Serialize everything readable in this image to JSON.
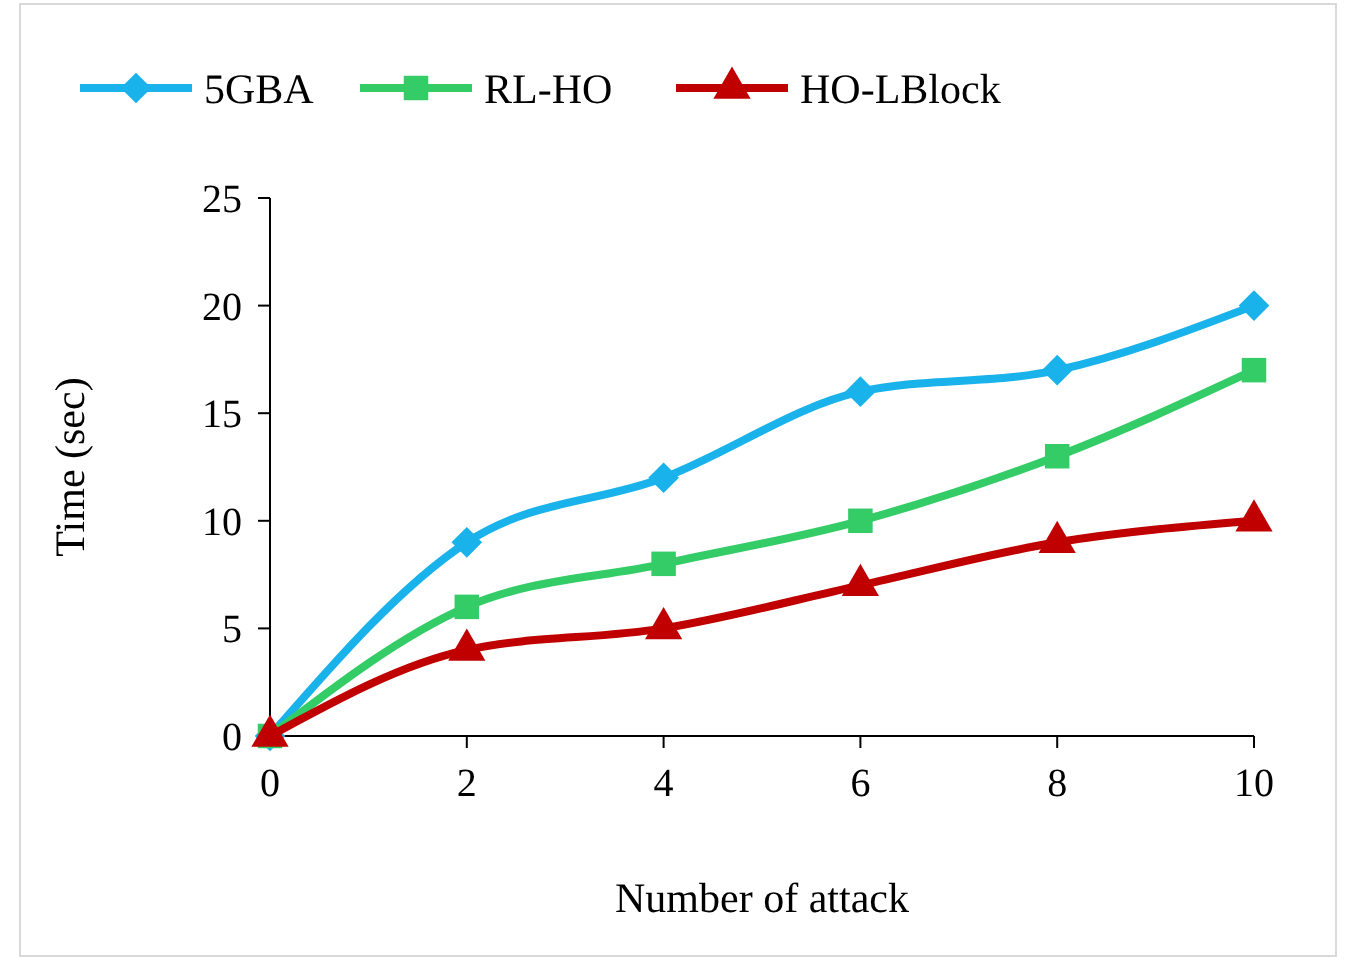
{
  "chart_data": {
    "type": "line",
    "xlabel": "Number of attack",
    "ylabel": "Time (sec)",
    "x": [
      0,
      2,
      4,
      6,
      8,
      10
    ],
    "xlim": [
      0,
      10
    ],
    "xticks": [
      0,
      2,
      4,
      6,
      8,
      10
    ],
    "ylim": [
      0,
      25
    ],
    "yticks": [
      0,
      5,
      10,
      15,
      20,
      25
    ],
    "grid": false,
    "legend": "top",
    "line_style": "solid",
    "series": [
      {
        "name": "5GBA",
        "color": "#1ab2ea",
        "marker": "diamond",
        "values": [
          0,
          9,
          12,
          16,
          17,
          20
        ]
      },
      {
        "name": "RL-HO",
        "color": "#33cc66",
        "marker": "square",
        "values": [
          0,
          6,
          8,
          10,
          13,
          17
        ]
      },
      {
        "name": "HO-LBlock",
        "color": "#c00000",
        "marker": "triangle",
        "values": [
          0,
          4,
          5,
          7,
          9,
          10
        ]
      }
    ]
  }
}
